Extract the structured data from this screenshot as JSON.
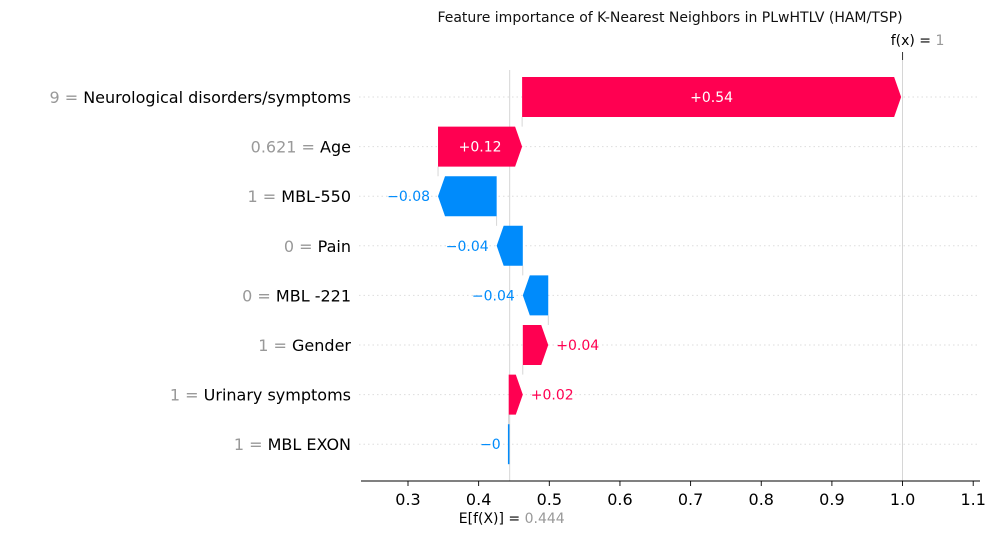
{
  "chart_data": {
    "type": "waterfall",
    "title": "Feature importance of K-Nearest Neighbors in PLwHTLV (HAM/TSP)",
    "base_value": 0.444,
    "output_value": 1,
    "base_label_prefix": "E[f(X)] = ",
    "base_label_value": "0.444",
    "output_label_prefix": "f(x) = ",
    "output_label_value": "1",
    "xlim": [
      0.23,
      1.11
    ],
    "ticks": [
      0.3,
      0.4,
      0.5,
      0.6,
      0.7,
      0.8,
      0.9,
      1.0,
      1.1
    ],
    "tick_labels": [
      "0.3",
      "0.4",
      "0.5",
      "0.6",
      "0.7",
      "0.8",
      "0.9",
      "1.0",
      "1.1"
    ],
    "features": [
      {
        "value": "9",
        "name": "Neurological disorders/symptoms",
        "start": 0.4615,
        "end": 0.998,
        "label": "+0.54"
      },
      {
        "value": "0.621",
        "name": "Age",
        "start": 0.3425,
        "end": 0.4615,
        "label": "+0.12"
      },
      {
        "value": "1",
        "name": "MBL-550",
        "start": 0.4255,
        "end": 0.3425,
        "label": "−0.08"
      },
      {
        "value": "0",
        "name": "Pain",
        "start": 0.4625,
        "end": 0.4255,
        "label": "−0.04"
      },
      {
        "value": "0",
        "name": "MBL -221",
        "start": 0.4985,
        "end": 0.4625,
        "label": "−0.04"
      },
      {
        "value": "1",
        "name": "Gender",
        "start": 0.4625,
        "end": 0.4985,
        "label": "+0.04"
      },
      {
        "value": "1",
        "name": "Urinary symptoms",
        "start": 0.4425,
        "end": 0.4625,
        "label": "+0.02"
      },
      {
        "value": "1",
        "name": "MBL EXON",
        "start": 0.444,
        "end": 0.4425,
        "label": "−0"
      }
    ],
    "colors": {
      "positive": "#ff0051",
      "negative": "#008bfb",
      "gray": "#999999",
      "grid": "#cccccc"
    }
  }
}
